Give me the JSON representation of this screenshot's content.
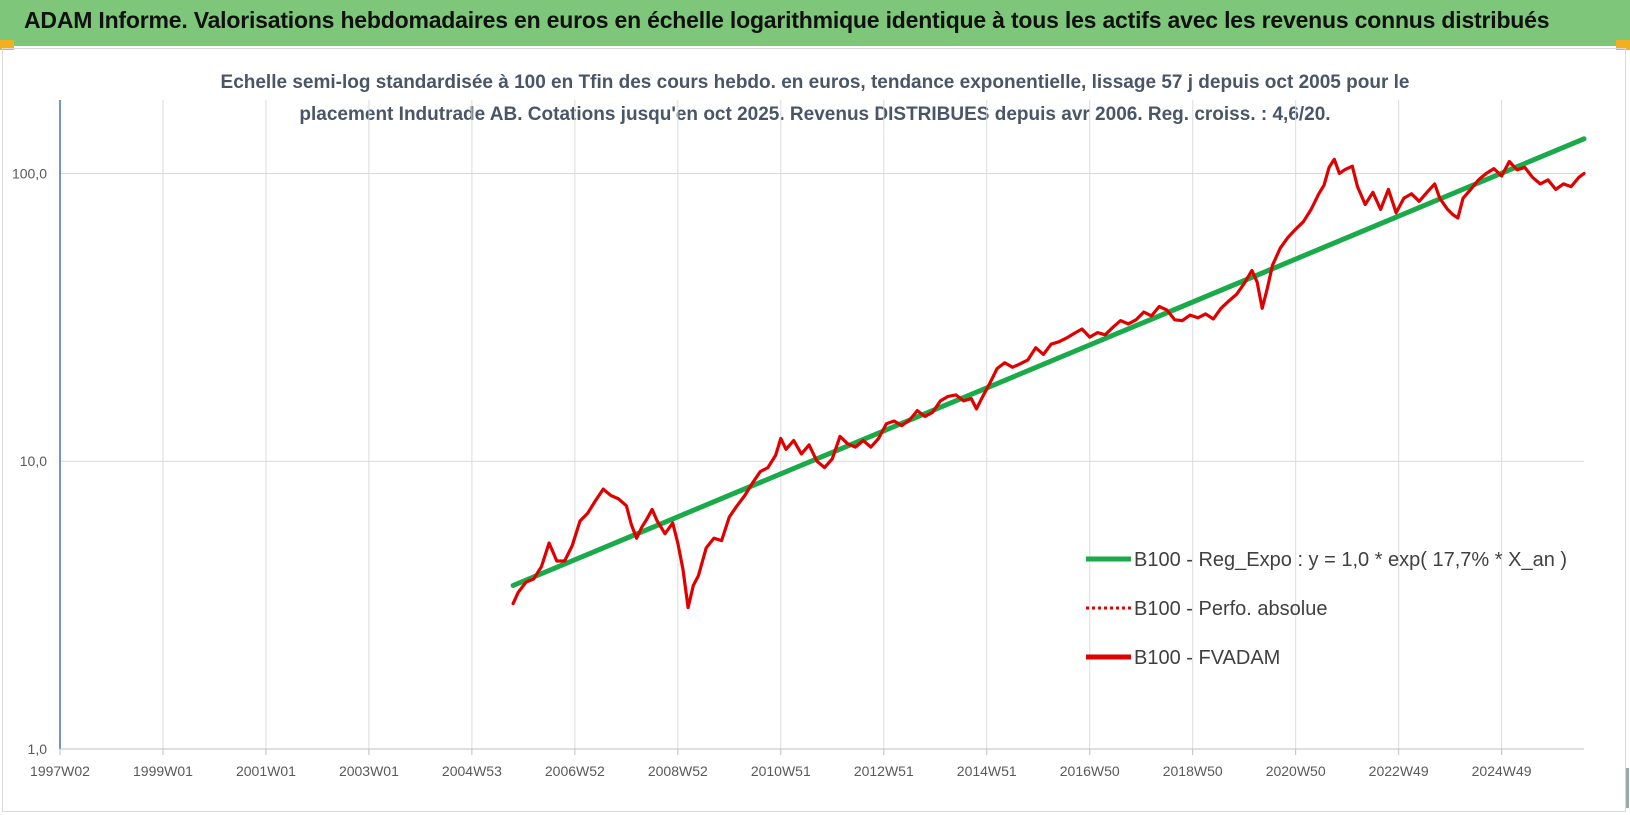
{
  "header": {
    "title": "ADAM Informe. Valorisations hebdomadaires en euros en échelle logarithmique identique à tous les actifs avec les revenus connus distribués",
    "accent_color": "#7ec77a"
  },
  "chart_data": {
    "type": "line",
    "title_line1": "Echelle semi-log standardisée à 100 en Tfin des cours hebdo. en euros, tendance exponentielle, lissage 57 j depuis oct 2005 pour le",
    "title_line2": "placement Indutrade AB. Cotations jusqu'en oct 2025. Revenus DISTRIBUES depuis avr 2006. Reg. croiss. : 4,6/20.",
    "y_scale": "log",
    "ylim": [
      1,
      180
    ],
    "y_ticks": [
      {
        "value": 1,
        "label": "1,0"
      },
      {
        "value": 10,
        "label": "10,0"
      },
      {
        "value": 100,
        "label": "100,0"
      }
    ],
    "x_range": [
      1997.0,
      2026.6
    ],
    "x_ticks": [
      {
        "value": 1997.0,
        "label": "1997W02"
      },
      {
        "value": 1999.0,
        "label": "1999W01"
      },
      {
        "value": 2001.0,
        "label": "2001W01"
      },
      {
        "value": 2003.0,
        "label": "2003W01"
      },
      {
        "value": 2005.0,
        "label": "2004W53"
      },
      {
        "value": 2007.0,
        "label": "2006W52"
      },
      {
        "value": 2009.0,
        "label": "2008W52"
      },
      {
        "value": 2011.0,
        "label": "2010W51"
      },
      {
        "value": 2013.0,
        "label": "2012W51"
      },
      {
        "value": 2015.0,
        "label": "2014W51"
      },
      {
        "value": 2017.0,
        "label": "2016W50"
      },
      {
        "value": 2019.0,
        "label": "2018W50"
      },
      {
        "value": 2021.0,
        "label": "2020W50"
      },
      {
        "value": 2023.0,
        "label": "2022W49"
      },
      {
        "value": 2025.0,
        "label": "2024W49"
      }
    ],
    "grid": "vertical and horizontal",
    "legend_position": "right",
    "series": [
      {
        "name": "B100 - Reg_Expo : y = 1,0 * exp( 17,7% *  X_an )",
        "color": "#1aaa4a",
        "style": "solid",
        "points": [
          [
            2005.8,
            3.7
          ],
          [
            2026.6,
            132
          ]
        ]
      },
      {
        "name": "B100 - Perfo. absolue",
        "color": "#e00000",
        "style": "dotted",
        "points": []
      },
      {
        "name": "B100 - FVADAM",
        "color": "#e00000",
        "style": "solid",
        "points": [
          [
            2005.8,
            3.2
          ],
          [
            2005.9,
            3.5
          ],
          [
            2006.05,
            3.8
          ],
          [
            2006.2,
            3.9
          ],
          [
            2006.35,
            4.3
          ],
          [
            2006.5,
            5.2
          ],
          [
            2006.65,
            4.5
          ],
          [
            2006.8,
            4.5
          ],
          [
            2006.95,
            5.1
          ],
          [
            2007.1,
            6.2
          ],
          [
            2007.25,
            6.6
          ],
          [
            2007.4,
            7.3
          ],
          [
            2007.55,
            8.0
          ],
          [
            2007.7,
            7.6
          ],
          [
            2007.85,
            7.4
          ],
          [
            2008.0,
            7.0
          ],
          [
            2008.1,
            6.0
          ],
          [
            2008.2,
            5.4
          ],
          [
            2008.3,
            5.9
          ],
          [
            2008.4,
            6.3
          ],
          [
            2008.5,
            6.8
          ],
          [
            2008.6,
            6.2
          ],
          [
            2008.75,
            5.6
          ],
          [
            2008.9,
            6.1
          ],
          [
            2009.0,
            5.2
          ],
          [
            2009.1,
            4.2
          ],
          [
            2009.2,
            3.1
          ],
          [
            2009.3,
            3.7
          ],
          [
            2009.4,
            4.0
          ],
          [
            2009.55,
            5.0
          ],
          [
            2009.7,
            5.4
          ],
          [
            2009.85,
            5.3
          ],
          [
            2010.0,
            6.4
          ],
          [
            2010.15,
            7.0
          ],
          [
            2010.3,
            7.6
          ],
          [
            2010.45,
            8.4
          ],
          [
            2010.6,
            9.2
          ],
          [
            2010.75,
            9.5
          ],
          [
            2010.9,
            10.5
          ],
          [
            2011.0,
            12.0
          ],
          [
            2011.1,
            11.0
          ],
          [
            2011.25,
            11.8
          ],
          [
            2011.4,
            10.6
          ],
          [
            2011.55,
            11.4
          ],
          [
            2011.7,
            10.0
          ],
          [
            2011.85,
            9.5
          ],
          [
            2012.0,
            10.2
          ],
          [
            2012.15,
            12.2
          ],
          [
            2012.3,
            11.5
          ],
          [
            2012.45,
            11.2
          ],
          [
            2012.6,
            11.8
          ],
          [
            2012.75,
            11.2
          ],
          [
            2012.9,
            12.0
          ],
          [
            2013.05,
            13.5
          ],
          [
            2013.2,
            13.8
          ],
          [
            2013.35,
            13.3
          ],
          [
            2013.5,
            13.9
          ],
          [
            2013.65,
            15.0
          ],
          [
            2013.8,
            14.3
          ],
          [
            2013.95,
            14.8
          ],
          [
            2014.1,
            16.2
          ],
          [
            2014.25,
            16.8
          ],
          [
            2014.4,
            17.0
          ],
          [
            2014.55,
            16.2
          ],
          [
            2014.7,
            16.5
          ],
          [
            2014.8,
            15.2
          ],
          [
            2014.9,
            16.5
          ],
          [
            2015.05,
            18.5
          ],
          [
            2015.2,
            21.0
          ],
          [
            2015.35,
            22.0
          ],
          [
            2015.5,
            21.2
          ],
          [
            2015.65,
            21.8
          ],
          [
            2015.8,
            22.5
          ],
          [
            2015.95,
            24.8
          ],
          [
            2016.1,
            23.5
          ],
          [
            2016.25,
            25.5
          ],
          [
            2016.4,
            26.0
          ],
          [
            2016.55,
            26.8
          ],
          [
            2016.7,
            27.8
          ],
          [
            2016.85,
            28.8
          ],
          [
            2017.0,
            27.0
          ],
          [
            2017.15,
            28.0
          ],
          [
            2017.3,
            27.5
          ],
          [
            2017.45,
            29.2
          ],
          [
            2017.6,
            30.8
          ],
          [
            2017.75,
            30.0
          ],
          [
            2017.9,
            31.0
          ],
          [
            2018.05,
            33.0
          ],
          [
            2018.2,
            32.0
          ],
          [
            2018.35,
            34.5
          ],
          [
            2018.5,
            33.5
          ],
          [
            2018.65,
            31.0
          ],
          [
            2018.8,
            30.8
          ],
          [
            2018.95,
            32.2
          ],
          [
            2019.1,
            31.5
          ],
          [
            2019.25,
            32.5
          ],
          [
            2019.4,
            31.2
          ],
          [
            2019.55,
            34.0
          ],
          [
            2019.7,
            36.0
          ],
          [
            2019.85,
            38.0
          ],
          [
            2020.0,
            41.5
          ],
          [
            2020.15,
            46.0
          ],
          [
            2020.25,
            42.0
          ],
          [
            2020.35,
            34.0
          ],
          [
            2020.45,
            40.0
          ],
          [
            2020.55,
            48.0
          ],
          [
            2020.7,
            55.0
          ],
          [
            2020.85,
            60.0
          ],
          [
            2021.0,
            64.0
          ],
          [
            2021.15,
            68.0
          ],
          [
            2021.3,
            75.0
          ],
          [
            2021.45,
            85.0
          ],
          [
            2021.55,
            91.0
          ],
          [
            2021.65,
            105.0
          ],
          [
            2021.75,
            112.0
          ],
          [
            2021.85,
            100.0
          ],
          [
            2021.95,
            103.0
          ],
          [
            2022.1,
            106.0
          ],
          [
            2022.2,
            90.0
          ],
          [
            2022.35,
            78.0
          ],
          [
            2022.5,
            86.0
          ],
          [
            2022.65,
            75.0
          ],
          [
            2022.8,
            88.0
          ],
          [
            2022.95,
            73.0
          ],
          [
            2023.1,
            82.0
          ],
          [
            2023.25,
            85.0
          ],
          [
            2023.4,
            80.0
          ],
          [
            2023.55,
            86.0
          ],
          [
            2023.7,
            92.0
          ],
          [
            2023.8,
            82.0
          ],
          [
            2023.95,
            75.0
          ],
          [
            2024.05,
            72.0
          ],
          [
            2024.15,
            70.0
          ],
          [
            2024.25,
            82.0
          ],
          [
            2024.4,
            88.0
          ],
          [
            2024.55,
            95.0
          ],
          [
            2024.7,
            100.0
          ],
          [
            2024.85,
            104.0
          ],
          [
            2025.0,
            98.0
          ],
          [
            2025.15,
            110.0
          ],
          [
            2025.3,
            103.0
          ],
          [
            2025.45,
            105.0
          ],
          [
            2025.6,
            97.0
          ],
          [
            2025.75,
            92.0
          ],
          [
            2025.9,
            95.0
          ],
          [
            2026.05,
            88.0
          ],
          [
            2026.2,
            92.0
          ],
          [
            2026.35,
            90.0
          ],
          [
            2026.5,
            97.0
          ],
          [
            2026.6,
            100.0
          ]
        ]
      }
    ]
  }
}
